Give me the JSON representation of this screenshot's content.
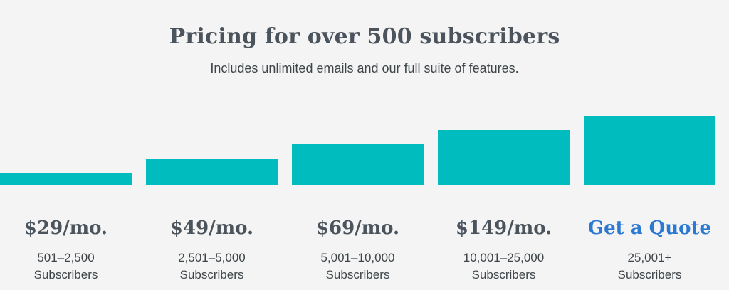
{
  "header": {
    "title": "Pricing for over 500 subscribers",
    "subtitle": "Includes unlimited emails and our full suite of features."
  },
  "colors": {
    "bar": "#00bcbe",
    "price_text": "#4b545c",
    "quote_link": "#2b79d0",
    "background": "#f4f4f4"
  },
  "tiers": [
    {
      "price": "$29/mo.",
      "range": "501–2,500",
      "unit": "Subscribers",
      "level": 1
    },
    {
      "price": "$49/mo.",
      "range": "2,501–5,000",
      "unit": "Subscribers",
      "level": 2
    },
    {
      "price": "$69/mo.",
      "range": "5,001–10,000",
      "unit": "Subscribers",
      "level": 3
    },
    {
      "price": "$149/mo.",
      "range": "10,001–25,000",
      "unit": "Subscribers",
      "level": 4
    },
    {
      "price": "Get a Quote",
      "range": "25,001+",
      "unit": "Subscribers",
      "level": 5
    }
  ]
}
